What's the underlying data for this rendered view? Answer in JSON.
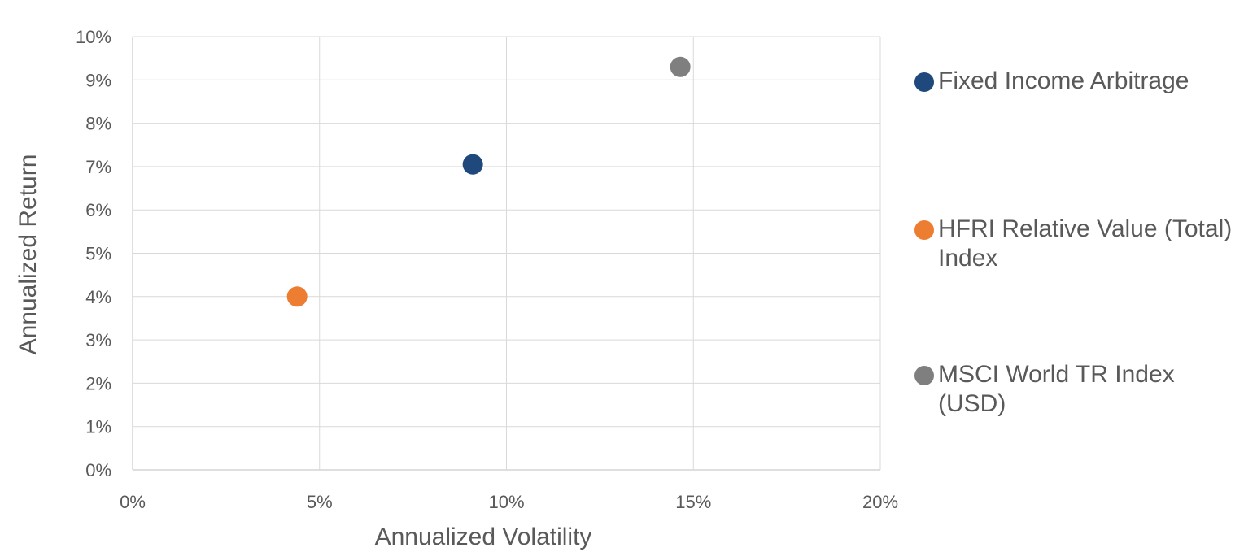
{
  "chart_data": {
    "type": "scatter",
    "xlabel": "Annualized Volatility",
    "ylabel": "Annualized Return",
    "xlim": [
      0,
      20
    ],
    "ylim": [
      0,
      10
    ],
    "x_ticks": [
      "0%",
      "5%",
      "10%",
      "15%",
      "20%"
    ],
    "y_ticks": [
      "0%",
      "1%",
      "2%",
      "3%",
      "4%",
      "5%",
      "6%",
      "7%",
      "8%",
      "9%",
      "10%"
    ],
    "grid": true,
    "legend_position": "right",
    "series": [
      {
        "name": "Fixed Income Arbitrage",
        "color": "#1f497d",
        "x": 9.1,
        "y": 7.05
      },
      {
        "name": "HFRI Relative Value (Total) Index",
        "color": "#ed7d31",
        "x": 4.4,
        "y": 4.0
      },
      {
        "name": "MSCI World TR Index (USD)",
        "color": "#7f7f7f",
        "x": 14.65,
        "y": 9.3
      }
    ]
  }
}
